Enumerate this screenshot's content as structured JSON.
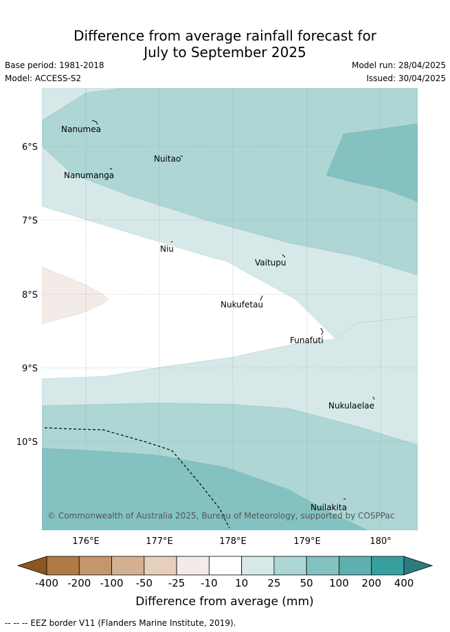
{
  "title": {
    "line1": "Difference from average rainfall forecast for",
    "line2": "July to September 2025"
  },
  "meta": {
    "base_period": "Base period: 1981-2018",
    "model": "Model: ACCESS-S2",
    "model_run": "Model run: 28/04/2025",
    "issued": "Issued: 30/04/2025"
  },
  "map": {
    "lat_labels": [
      "6°S",
      "7°S",
      "8°S",
      "9°S",
      "10°S"
    ],
    "lon_labels": [
      "176°E",
      "177°E",
      "178°E",
      "179°E",
      "180°"
    ],
    "islands": [
      "Nanumea",
      "Nuitao",
      "Nanumanga",
      "Niu",
      "Vaitupu",
      "Nukufetau",
      "Funafuti",
      "Nukulaelae",
      "Nuilakita"
    ],
    "copyright": "© Commonwealth of Australia 2025, Bureau of Meteorology, supported by COSPPac"
  },
  "legend": {
    "labels": [
      "-400",
      "-200",
      "-100",
      "-50",
      "-25",
      "-10",
      "10",
      "25",
      "50",
      "100",
      "200",
      "400"
    ],
    "colors": [
      "#8c5620",
      "#b07a45",
      "#c4966c",
      "#d4b191",
      "#e6cfbb",
      "#f2ebe7",
      "#ffffff",
      "#d6e9e8",
      "#add6d5",
      "#84c2c1",
      "#5eb0af",
      "#389f9f",
      "#2c7c7d"
    ],
    "title": "Difference from average (mm)"
  },
  "footer": "--  --  -- EEZ border V11 (Flanders Marine Institute, 2019)."
}
